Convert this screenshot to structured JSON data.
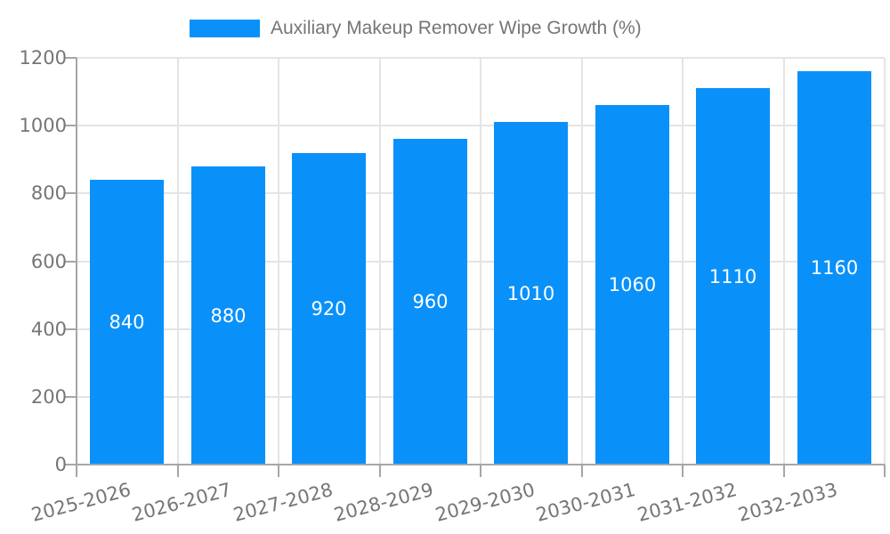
{
  "legend": {
    "label": "Auxiliary Makeup Remover Wipe Growth (%)"
  },
  "chart_data": {
    "type": "bar",
    "title": "Auxiliary Makeup Remover Wipe Growth (%)",
    "categories": [
      "2025-2026",
      "2026-2027",
      "2027-2028",
      "2028-2029",
      "2029-2030",
      "2030-2031",
      "2031-2032",
      "2032-2033"
    ],
    "values": [
      840,
      880,
      920,
      960,
      1010,
      1060,
      1110,
      1160
    ],
    "bar_labels": [
      "840",
      "880",
      "920",
      "960",
      "1010",
      "1060",
      "1110",
      "1160"
    ],
    "xlabel": "",
    "ylabel": "",
    "ylim": [
      0,
      1200
    ],
    "yticks": [
      0,
      200,
      400,
      600,
      800,
      1000,
      1200
    ],
    "grid": true,
    "legend_position": "top",
    "colors": {
      "bar": "#0991f9",
      "bar_label_text": "#ffffff",
      "axis_line": "#a6a6a6",
      "grid_line": "#e4e4e4",
      "axis_text": "#757575",
      "background": "#ffffff"
    }
  }
}
